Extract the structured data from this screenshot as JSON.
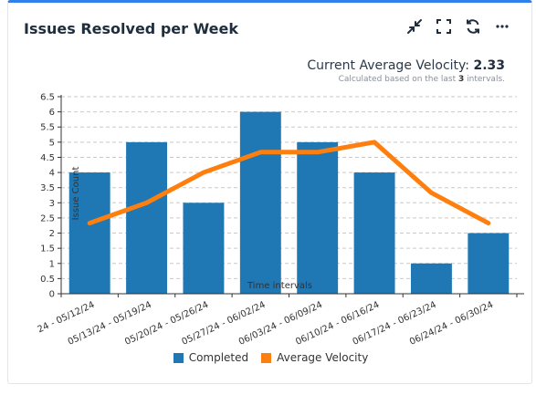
{
  "widget": {
    "title": "Issues Resolved per Week",
    "velocity_label": "Current Average Velocity: ",
    "velocity_value": "2.33",
    "calc_prefix": "Calculated based on the last ",
    "calc_count": "3",
    "calc_suffix": " intervals."
  },
  "toolbar": {
    "icons": [
      "collapse-icon",
      "fullscreen-icon",
      "refresh-icon",
      "more-icon"
    ]
  },
  "colors": {
    "completed": "#1f77b4",
    "velocity": "#ff7f0e",
    "accent": "#2f80ed"
  },
  "legend": {
    "completed_label": "Completed",
    "velocity_label": "Average Velocity"
  },
  "chart_data": {
    "type": "bar",
    "xlabel": "Time intervals",
    "ylabel": "Issue Count",
    "ylim": [
      0,
      6.5
    ],
    "yticks": [
      "0",
      "0.5",
      "1",
      "1.5",
      "2",
      "2.5",
      "3",
      "3.5",
      "4",
      "4.5",
      "5",
      "5.5",
      "6",
      "6.5"
    ],
    "grid": true,
    "legend_position": "bottom",
    "categories": [
      "24 - 05/12/24",
      "05/13/24 - 05/19/24",
      "05/20/24 - 05/26/24",
      "05/27/24 - 06/02/24",
      "06/03/24 - 06/09/24",
      "06/10/24 - 06/16/24",
      "06/17/24 - 06/23/24",
      "06/24/24 - 06/30/24"
    ],
    "series": [
      {
        "name": "Completed",
        "type": "bar",
        "values": [
          4,
          5,
          3,
          6,
          5,
          4,
          1,
          2
        ]
      },
      {
        "name": "Average Velocity",
        "type": "line",
        "values": [
          2.33,
          3.0,
          4.0,
          4.67,
          4.67,
          5.0,
          3.33,
          2.33
        ]
      }
    ]
  }
}
